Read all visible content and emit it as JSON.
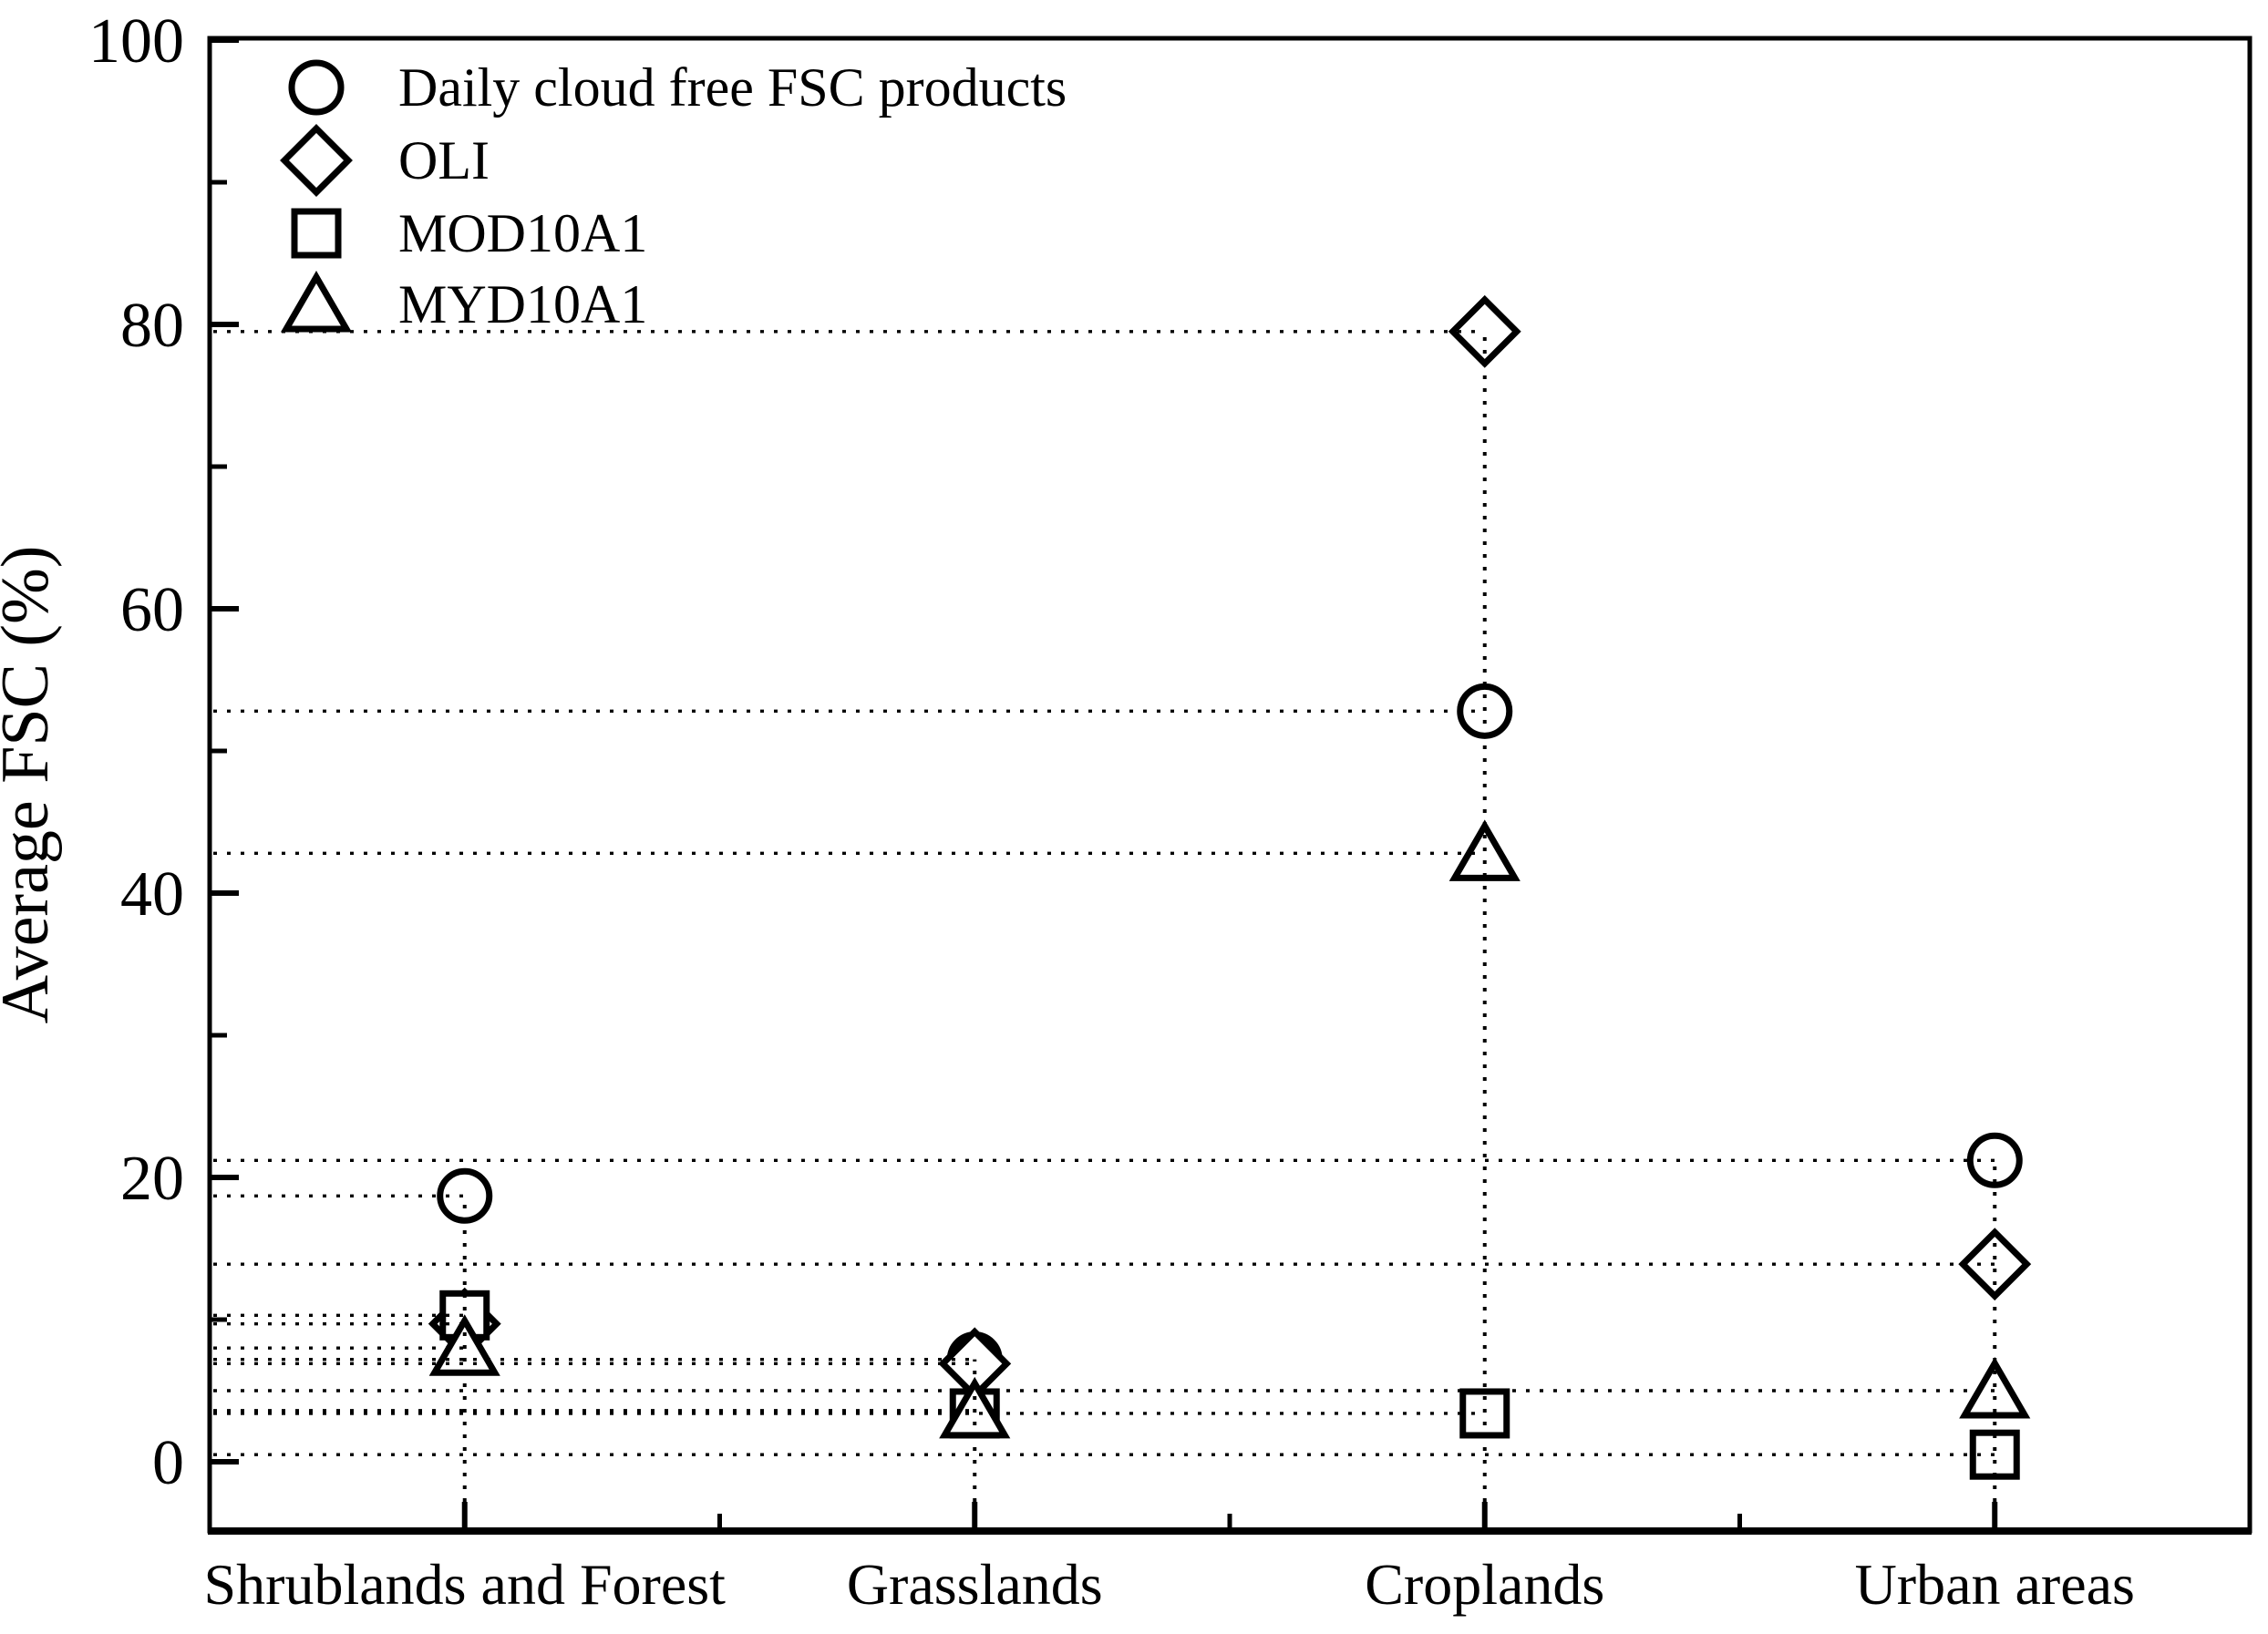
{
  "figure": {
    "background": "#ffffff",
    "description": "Scatter chart comparing average fractional snow cover (FSC) of four products across four land cover classes"
  },
  "chart_data": {
    "type": "scatter",
    "title": "",
    "xlabel": "",
    "ylabel": "Average FSC (%)",
    "ylim": [
      -5,
      100
    ],
    "y_major_ticks": [
      0,
      20,
      40,
      60,
      80,
      100
    ],
    "y_minor_ticks": [
      10,
      30,
      50,
      70,
      90
    ],
    "categories": [
      "Shrublands and Forest",
      "Grasslands",
      "Croplands",
      "Urban areas"
    ],
    "series": [
      {
        "name": "Daily cloud free FSC products",
        "marker": "circle",
        "values": [
          18.7,
          7.2,
          52.8,
          21.2
        ]
      },
      {
        "name": "OLI",
        "marker": "diamond",
        "values": [
          9.7,
          6.9,
          79.5,
          13.9
        ]
      },
      {
        "name": "MOD10A1",
        "marker": "square",
        "values": [
          10.3,
          3.4,
          3.4,
          0.5
        ]
      },
      {
        "name": "MYD10A1",
        "marker": "triangle",
        "values": [
          8.0,
          3.6,
          42.8,
          5.0
        ]
      }
    ],
    "legend_position": "top-left-inside",
    "grid": "dotted leader lines from axes to each data point",
    "colors": {
      "marker_stroke": "#000000",
      "marker_fill": "#ffffff",
      "axis": "#000000",
      "leader_line": "#000000",
      "text": "#000000"
    }
  }
}
